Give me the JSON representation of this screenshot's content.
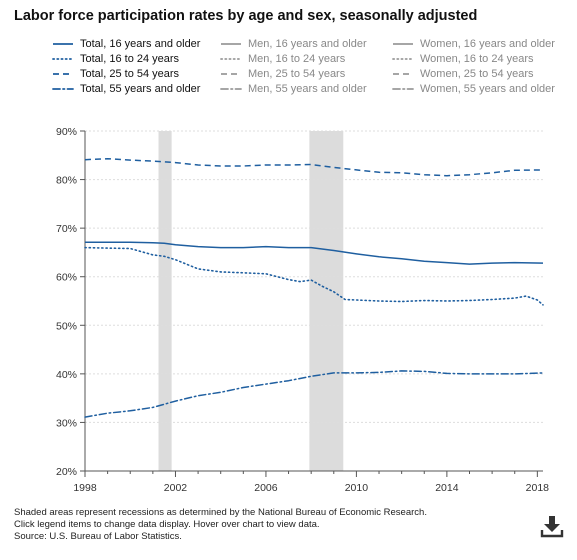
{
  "title": "Labor force participation rates by age and sex, seasonally adjusted",
  "legend": {
    "items": [
      {
        "label": "Total, 16 years and older",
        "style": "solid",
        "active": true
      },
      {
        "label": "Men, 16 years and older",
        "style": "solid",
        "active": false
      },
      {
        "label": "Women, 16 years and older",
        "style": "solid",
        "active": false
      },
      {
        "label": "Total, 16 to 24 years",
        "style": "dotted",
        "active": true
      },
      {
        "label": "Men, 16 to 24 years",
        "style": "dotted",
        "active": false
      },
      {
        "label": "Women, 16 to 24 years",
        "style": "dotted",
        "active": false
      },
      {
        "label": "Total, 25 to 54 years",
        "style": "dashed",
        "active": true
      },
      {
        "label": "Men, 25 to 54 years",
        "style": "dashed",
        "active": false
      },
      {
        "label": "Women, 25 to 54 years",
        "style": "dashed",
        "active": false
      },
      {
        "label": "Total, 55 years and older",
        "style": "dashdot",
        "active": true
      },
      {
        "label": "Men, 55 years and older",
        "style": "dashdot",
        "active": false
      },
      {
        "label": "Women, 55 years and older",
        "style": "dashdot",
        "active": false
      }
    ]
  },
  "colors": {
    "active": "#1f5fa0",
    "inactive": "#9a9a9a",
    "recession": "#dcdcdc",
    "grid": "#dddddd"
  },
  "chart_data": {
    "type": "line",
    "xlim": [
      1998,
      2018.25
    ],
    "ylim": [
      20,
      90
    ],
    "x_ticks": [
      1998,
      2002,
      2006,
      2010,
      2014,
      2018
    ],
    "y_ticks": [
      {
        "value": 20,
        "label": "20%"
      },
      {
        "value": 30,
        "label": "30%"
      },
      {
        "value": 40,
        "label": "40%"
      },
      {
        "value": 50,
        "label": "50%"
      },
      {
        "value": 60,
        "label": "60%"
      },
      {
        "value": 70,
        "label": "70%"
      },
      {
        "value": 80,
        "label": "80%"
      },
      {
        "value": 90,
        "label": "90%"
      }
    ],
    "grid": true,
    "recessions": [
      [
        2001.25,
        2001.83
      ],
      [
        2007.92,
        2009.42
      ]
    ],
    "series": [
      {
        "name": "Total, 16 years and older",
        "style": "solid",
        "x": [
          1998,
          1999,
          2000,
          2001,
          2001.5,
          2002,
          2003,
          2004,
          2005,
          2006,
          2007,
          2008,
          2009,
          2010,
          2011,
          2012,
          2013,
          2014,
          2015,
          2016,
          2017,
          2018.25
        ],
        "y": [
          67.1,
          67.1,
          67.1,
          67.0,
          66.9,
          66.6,
          66.2,
          66.0,
          66.0,
          66.2,
          66.0,
          66.0,
          65.4,
          64.7,
          64.1,
          63.7,
          63.2,
          62.9,
          62.6,
          62.8,
          62.9,
          62.8
        ]
      },
      {
        "name": "Total, 16 to 24 years",
        "style": "dotted",
        "x": [
          1998,
          1999,
          2000,
          2001,
          2001.5,
          2002,
          2003,
          2004,
          2005,
          2006,
          2007,
          2007.5,
          2008,
          2008.5,
          2009,
          2009.5,
          2010,
          2011,
          2012,
          2013,
          2014,
          2015,
          2016,
          2017,
          2017.5,
          2018,
          2018.25
        ],
        "y": [
          66.0,
          65.9,
          65.8,
          64.5,
          64.2,
          63.5,
          61.6,
          61.0,
          60.8,
          60.6,
          59.4,
          59.0,
          59.3,
          58.0,
          56.9,
          55.3,
          55.2,
          55.0,
          54.9,
          55.1,
          55.0,
          55.1,
          55.3,
          55.6,
          56.0,
          55.2,
          54.2
        ]
      },
      {
        "name": "Total, 25 to 54 years",
        "style": "dashed",
        "x": [
          1998,
          1999,
          2000,
          2001,
          2002,
          2003,
          2004,
          2005,
          2006,
          2007,
          2008,
          2009,
          2010,
          2011,
          2012,
          2013,
          2014,
          2015,
          2016,
          2017,
          2018.25
        ],
        "y": [
          84.1,
          84.3,
          84.0,
          83.8,
          83.5,
          83.0,
          82.8,
          82.8,
          83.0,
          83.0,
          83.1,
          82.5,
          82.0,
          81.5,
          81.4,
          81.0,
          80.8,
          81.0,
          81.4,
          81.9,
          82.0
        ]
      },
      {
        "name": "Total, 55 years and older",
        "style": "dashdot",
        "x": [
          1998,
          1999,
          2000,
          2001,
          2002,
          2003,
          2004,
          2005,
          2006,
          2007,
          2008,
          2009,
          2010,
          2011,
          2012,
          2013,
          2014,
          2015,
          2016,
          2017,
          2018.25
        ],
        "y": [
          31.1,
          31.9,
          32.4,
          33.1,
          34.4,
          35.5,
          36.2,
          37.2,
          37.9,
          38.6,
          39.5,
          40.2,
          40.2,
          40.3,
          40.6,
          40.5,
          40.1,
          40.0,
          40.0,
          40.0,
          40.2
        ]
      }
    ]
  },
  "footnote": {
    "line1": "Shaded areas represent recessions as determined by the National Bureau of Economic Research.",
    "line2": "Click legend items to change data display. Hover over chart to view data.",
    "line3": "Source: U.S. Bureau of Labor Statistics."
  },
  "download": {
    "icon": "download-icon"
  }
}
